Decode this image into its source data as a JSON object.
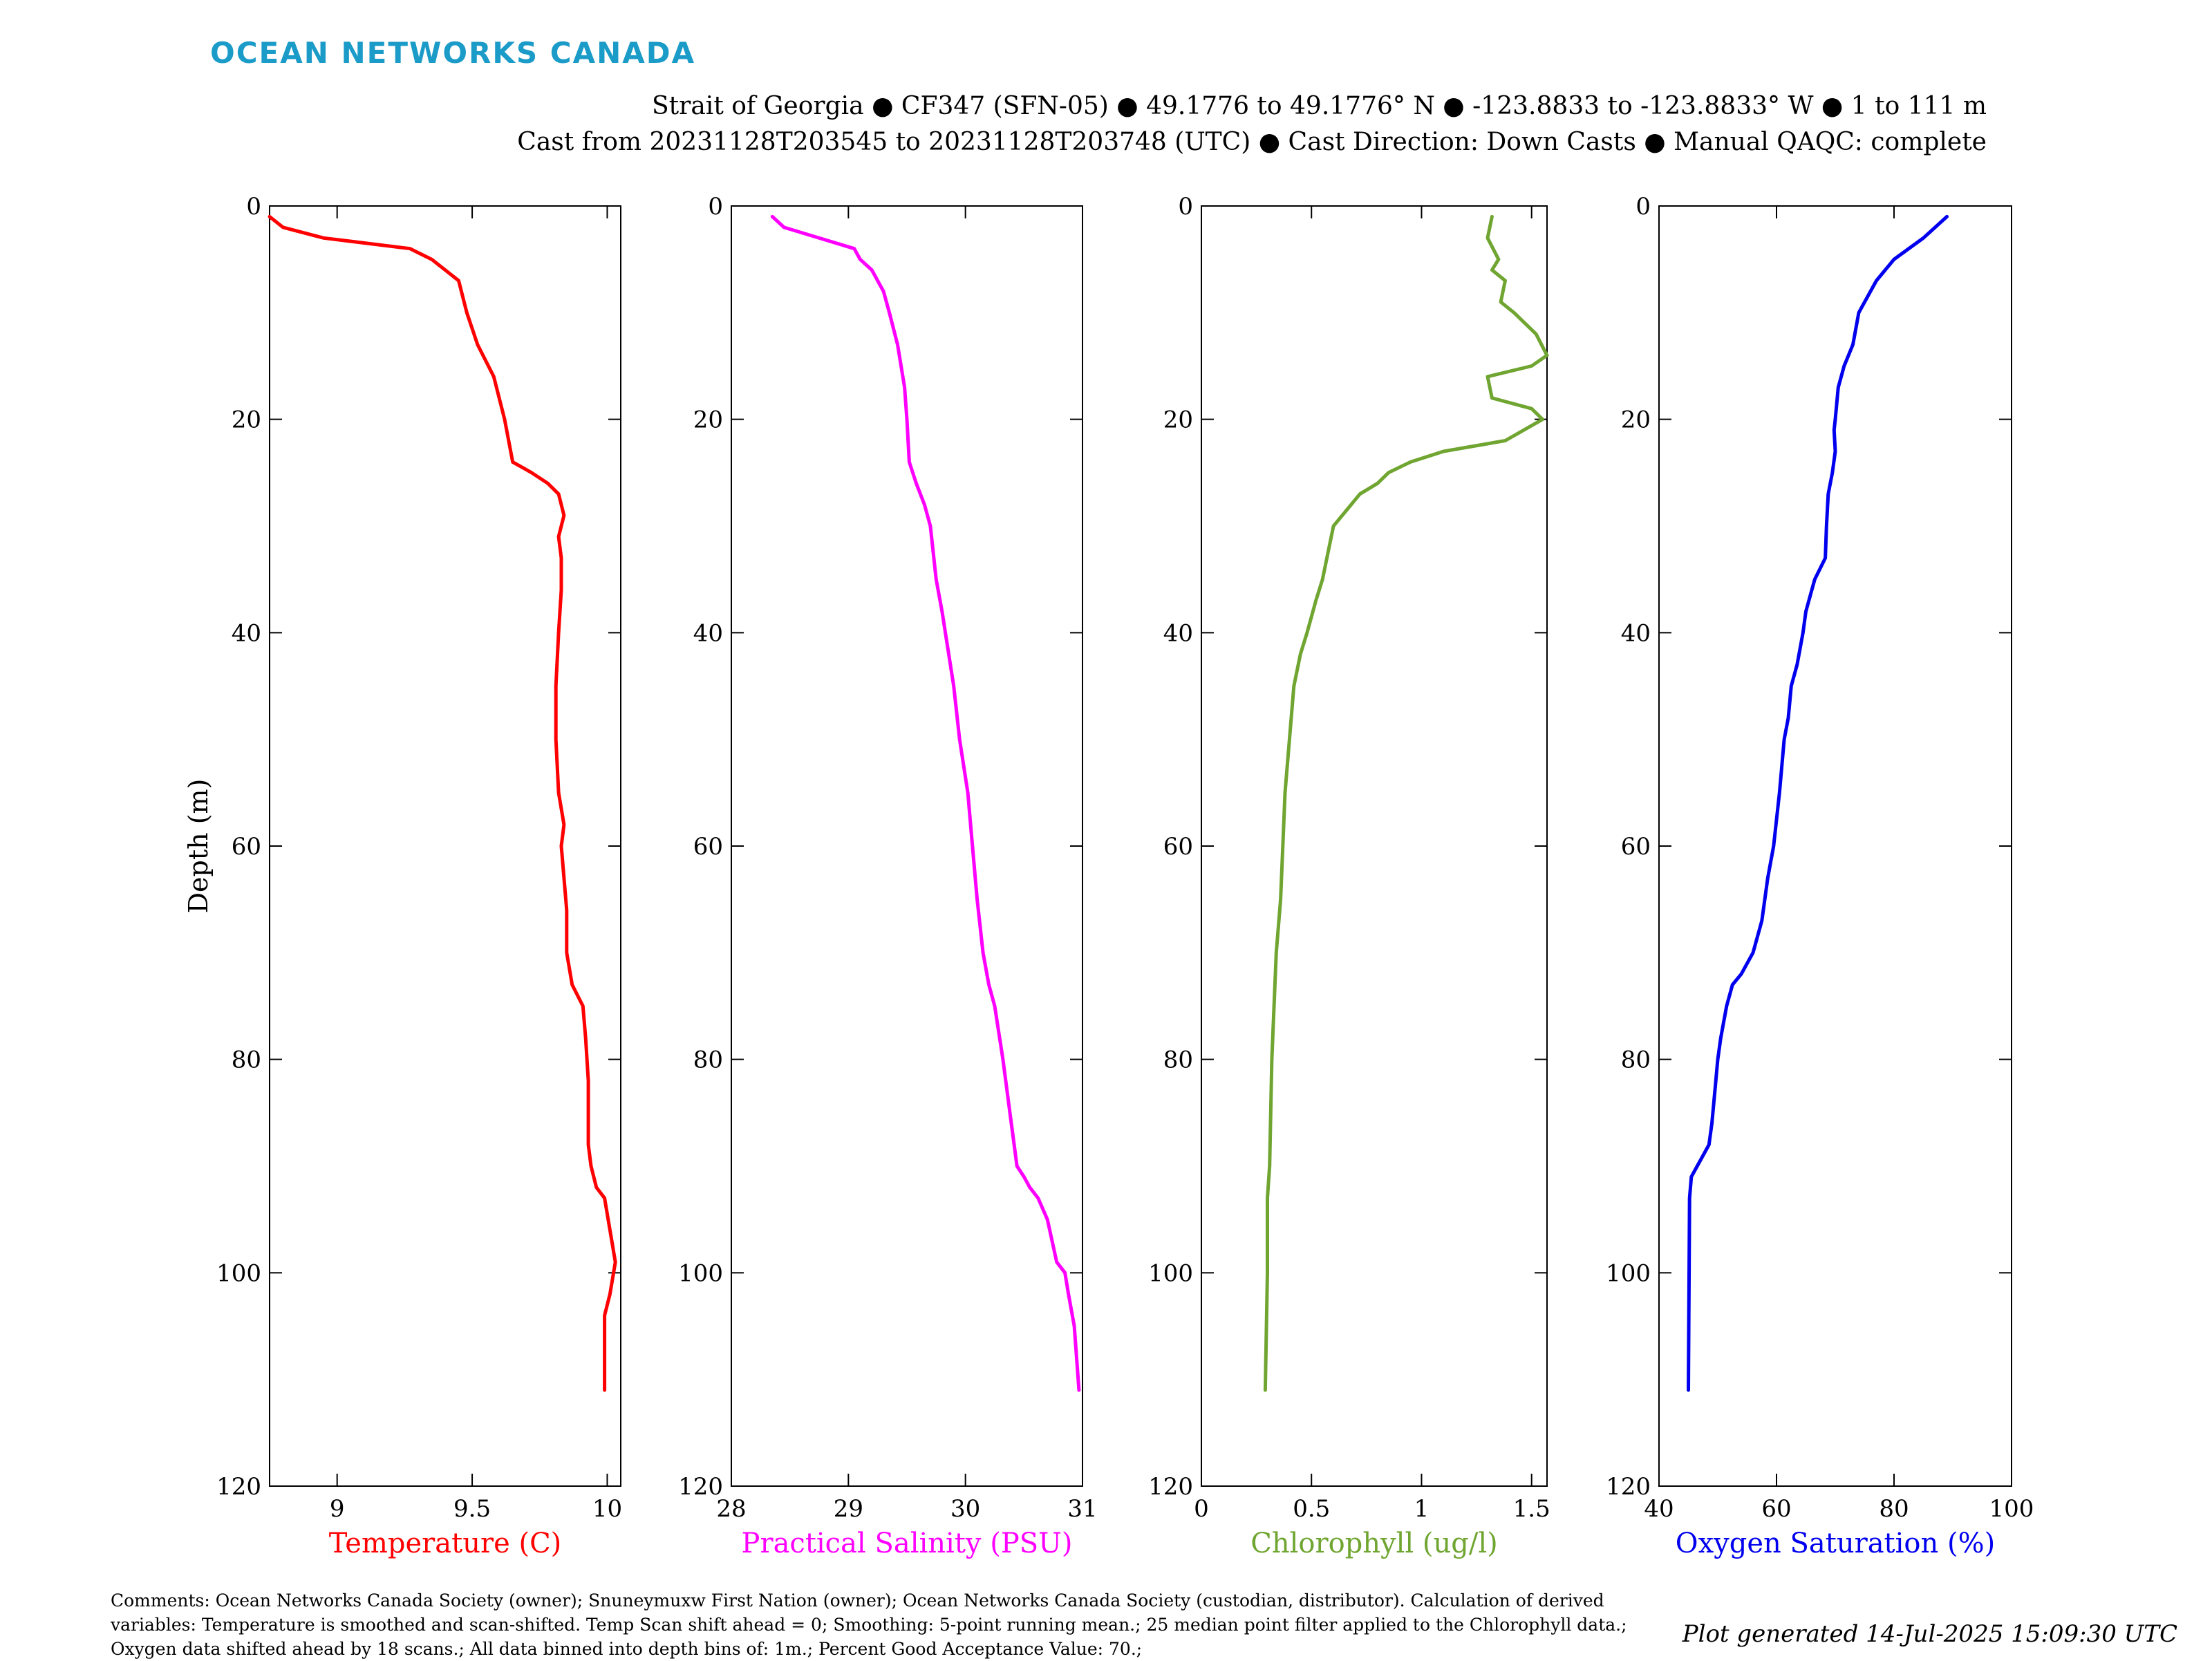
{
  "logo_text": "OCEAN NETWORKS CANADA",
  "header": {
    "line1": "Strait of Georgia ● CF347 (SFN-05) ● 49.1776 to 49.1776° N ● -123.8833 to -123.8833° W ● 1 to 111 m",
    "line2": "Cast from 20231128T203545 to 20231128T203748 (UTC) ● Cast Direction: Down Casts ● Manual QAQC: complete"
  },
  "comments": "Comments: Ocean Networks Canada Society (owner); Snuneymuxw First Nation (owner); Ocean Networks Canada Society (custodian, distributor). Calculation of derived variables: Temperature is smoothed and scan-shifted. Temp Scan shift ahead = 0; Smoothing: 5-point running mean.; 25 median point filter applied to the Chlorophyll data.; Oxygen data shifted ahead by 18 scans.; All data binned into depth bins of: 1m.; Percent Good Acceptance Value: 70.;",
  "generated": "Plot generated 14-Jul-2025 15:09:30 UTC",
  "chart_data": [
    {
      "type": "line",
      "xlabel": "Temperature (C)",
      "ylabel": "Depth (m)",
      "color": "#ff0000",
      "xlim": [
        8.75,
        10.05
      ],
      "xticks": [
        9,
        9.5,
        10
      ],
      "xtick_labels": [
        "9",
        "9.5",
        "10"
      ],
      "ylim": [
        0,
        120
      ],
      "yticks": [
        0,
        20,
        40,
        60,
        80,
        100,
        120
      ],
      "ytick_labels": [
        "0",
        "20",
        "40",
        "60",
        "80",
        "100",
        "120"
      ],
      "y_reversed": true,
      "x": [
        8.75,
        8.8,
        8.95,
        9.27,
        9.35,
        9.45,
        9.48,
        9.52,
        9.58,
        9.62,
        9.65,
        9.72,
        9.78,
        9.82,
        9.84,
        9.82,
        9.83,
        9.83,
        9.82,
        9.81,
        9.81,
        9.82,
        9.84,
        9.83,
        9.84,
        9.85,
        9.85,
        9.87,
        9.91,
        9.92,
        9.93,
        9.93,
        9.93,
        9.94,
        9.96,
        9.99,
        10.01,
        10.03,
        10.01,
        9.99,
        9.99,
        9.99
      ],
      "y": [
        1,
        2,
        3,
        4,
        5,
        7,
        10,
        13,
        16,
        20,
        24,
        25,
        26,
        27,
        29,
        31,
        33,
        36,
        40,
        45,
        50,
        55,
        58,
        60,
        63,
        66,
        70,
        73,
        75,
        78,
        82,
        85,
        88,
        90,
        92,
        93,
        96,
        99,
        102,
        104,
        106,
        111
      ]
    },
    {
      "type": "line",
      "xlabel": "Practical Salinity (PSU)",
      "color": "#ff00ff",
      "xlim": [
        28,
        31
      ],
      "xticks": [
        28,
        29,
        30,
        31
      ],
      "xtick_labels": [
        "28",
        "29",
        "30",
        "31"
      ],
      "ylim": [
        0,
        120
      ],
      "yticks": [
        0,
        20,
        40,
        60,
        80,
        100,
        120
      ],
      "ytick_labels": [
        "0",
        "20",
        "40",
        "60",
        "80",
        "100",
        "120"
      ],
      "y_reversed": true,
      "x": [
        28.35,
        28.45,
        29.05,
        29.1,
        29.2,
        29.3,
        29.35,
        29.42,
        29.48,
        29.5,
        29.52,
        29.58,
        29.65,
        29.7,
        29.75,
        29.8,
        29.9,
        29.95,
        30.02,
        30.06,
        30.1,
        30.15,
        30.2,
        30.25,
        30.32,
        30.38,
        30.44,
        30.5,
        30.55,
        30.62,
        30.7,
        30.78,
        30.85,
        30.88,
        30.93,
        30.97
      ],
      "y": [
        1,
        2,
        4,
        5,
        6,
        8,
        10,
        13,
        17,
        20,
        24,
        26,
        28,
        30,
        35,
        38,
        45,
        50,
        55,
        60,
        65,
        70,
        73,
        75,
        80,
        85,
        90,
        91,
        92,
        93,
        95,
        99,
        100,
        102,
        105,
        111
      ]
    },
    {
      "type": "line",
      "xlabel": "Chlorophyll (ug/l)",
      "color": "#6fa530",
      "xlim": [
        0,
        1.57
      ],
      "xticks": [
        0,
        0.5,
        1,
        1.5
      ],
      "xtick_labels": [
        "0",
        "0.5",
        "1",
        "1.5"
      ],
      "ylim": [
        0,
        120
      ],
      "yticks": [
        0,
        20,
        40,
        60,
        80,
        100,
        120
      ],
      "ytick_labels": [
        "0",
        "20",
        "40",
        "60",
        "80",
        "100",
        "120"
      ],
      "y_reversed": true,
      "x": [
        1.32,
        1.3,
        1.35,
        1.32,
        1.38,
        1.36,
        1.42,
        1.52,
        1.57,
        1.5,
        1.3,
        1.32,
        1.5,
        1.55,
        1.38,
        1.1,
        0.95,
        0.85,
        0.8,
        0.72,
        0.68,
        0.6,
        0.58,
        0.55,
        0.52,
        0.48,
        0.45,
        0.42,
        0.4,
        0.38,
        0.37,
        0.36,
        0.34,
        0.32,
        0.31,
        0.3,
        0.3,
        0.3,
        0.29
      ],
      "y": [
        1,
        3,
        5,
        6,
        7,
        9,
        10,
        12,
        14,
        15,
        16,
        18,
        19,
        20,
        22,
        23,
        24,
        25,
        26,
        27,
        28,
        30,
        32,
        35,
        37,
        40,
        42,
        45,
        50,
        55,
        60,
        65,
        70,
        80,
        90,
        93,
        96,
        100,
        111
      ]
    },
    {
      "type": "line",
      "xlabel": "Oxygen Saturation (%)",
      "color": "#0000ee",
      "xlim": [
        40,
        100
      ],
      "xticks": [
        40,
        60,
        80,
        100
      ],
      "xtick_labels": [
        "40",
        "60",
        "80",
        "100"
      ],
      "ylim": [
        0,
        120
      ],
      "yticks": [
        0,
        20,
        40,
        60,
        80,
        100,
        120
      ],
      "ytick_labels": [
        "0",
        "20",
        "40",
        "60",
        "80",
        "100",
        "120"
      ],
      "y_reversed": true,
      "x": [
        89,
        85,
        80,
        77,
        74,
        73,
        71.5,
        70.5,
        70,
        69.8,
        70,
        69.5,
        68.8,
        68.5,
        68.3,
        66.5,
        65,
        64.5,
        63.5,
        62.5,
        62,
        61.3,
        60.5,
        59.5,
        58.5,
        57.5,
        56,
        54,
        52.5,
        51.5,
        50.5,
        50,
        49.5,
        49,
        48.5,
        47.5,
        46.5,
        45.5,
        45.2,
        45
      ],
      "y": [
        1,
        3,
        5,
        7,
        10,
        13,
        15,
        17,
        20,
        21,
        23,
        25,
        27,
        30,
        33,
        35,
        38,
        40,
        43,
        45,
        48,
        50,
        55,
        60,
        63,
        67,
        70,
        72,
        73,
        75,
        78,
        80,
        83,
        86,
        88,
        89,
        90,
        91,
        93,
        111
      ]
    }
  ]
}
